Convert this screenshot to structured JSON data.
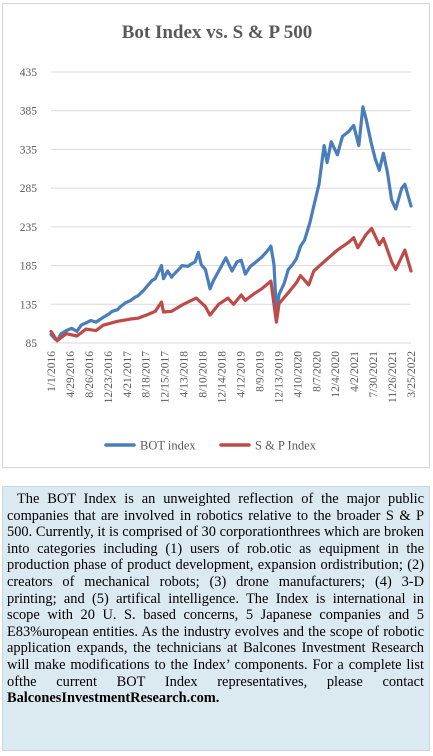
{
  "chart_data": {
    "type": "line",
    "title": "Bot Index vs. S & P 500",
    "ylim": [
      85,
      435
    ],
    "yticks": [
      85,
      135,
      185,
      235,
      285,
      335,
      385,
      435
    ],
    "xticks": [
      "1/1/2016",
      "4/29/2016",
      "8/26/2016",
      "12/23/2016",
      "4/21/2017",
      "8/18/2017",
      "12/15/2017",
      "4/13/2018",
      "8/10/2018",
      "12/14/2018",
      "4/12/2019",
      "8/9/2019",
      "12/13/2019",
      "4/10/2020",
      "8/7/2020",
      "12/4/2020",
      "4/2/2021",
      "7/30/2021",
      "11/26/2021",
      "3/25/2022"
    ],
    "xrange": [
      "2016-01-01",
      "2022-09-30"
    ],
    "grid": true,
    "legend": "bottom",
    "series": [
      {
        "name": "BOT index",
        "color": "#4a7ebb",
        "points": [
          [
            "2016-01-01",
            96
          ],
          [
            "2016-01-25",
            91
          ],
          [
            "2016-02-12",
            88
          ],
          [
            "2016-03-10",
            97
          ],
          [
            "2016-04-15",
            101
          ],
          [
            "2016-05-20",
            104
          ],
          [
            "2016-06-27",
            100
          ],
          [
            "2016-07-25",
            108
          ],
          [
            "2016-08-26",
            111
          ],
          [
            "2016-09-30",
            114
          ],
          [
            "2016-11-04",
            112
          ],
          [
            "2016-12-23",
            118
          ],
          [
            "2017-01-27",
            122
          ],
          [
            "2017-02-24",
            126
          ],
          [
            "2017-03-31",
            128
          ],
          [
            "2017-04-21",
            132
          ],
          [
            "2017-05-26",
            137
          ],
          [
            "2017-06-30",
            140
          ],
          [
            "2017-07-28",
            144
          ],
          [
            "2017-08-18",
            146
          ],
          [
            "2017-09-22",
            152
          ],
          [
            "2017-10-27",
            160
          ],
          [
            "2017-11-24",
            166
          ],
          [
            "2017-12-15",
            168
          ],
          [
            "2018-01-26",
            185
          ],
          [
            "2018-02-09",
            168
          ],
          [
            "2018-03-09",
            178
          ],
          [
            "2018-04-06",
            170
          ],
          [
            "2018-04-13",
            172
          ],
          [
            "2018-05-25",
            180
          ],
          [
            "2018-06-15",
            185
          ],
          [
            "2018-07-27",
            184
          ],
          [
            "2018-08-10",
            186
          ],
          [
            "2018-09-14",
            190
          ],
          [
            "2018-10-05",
            202
          ],
          [
            "2018-10-26",
            186
          ],
          [
            "2018-11-23",
            180
          ],
          [
            "2018-12-24",
            155
          ],
          [
            "2019-01-18",
            166
          ],
          [
            "2019-02-22",
            178
          ],
          [
            "2019-04-12",
            195
          ],
          [
            "2019-05-24",
            178
          ],
          [
            "2019-06-28",
            190
          ],
          [
            "2019-07-26",
            192
          ],
          [
            "2019-08-23",
            174
          ],
          [
            "2019-09-27",
            184
          ],
          [
            "2019-10-25",
            188
          ],
          [
            "2019-12-13",
            196
          ],
          [
            "2020-01-17",
            203
          ],
          [
            "2020-02-14",
            210
          ],
          [
            "2020-03-06",
            186
          ],
          [
            "2020-03-23",
            125
          ],
          [
            "2020-04-10",
            148
          ],
          [
            "2020-05-15",
            162
          ],
          [
            "2020-06-12",
            180
          ],
          [
            "2020-07-10",
            186
          ],
          [
            "2020-08-07",
            194
          ],
          [
            "2020-09-04",
            210
          ],
          [
            "2020-10-02",
            218
          ],
          [
            "2020-11-06",
            240
          ],
          [
            "2020-12-04",
            262
          ],
          [
            "2021-01-08",
            290
          ],
          [
            "2021-02-12",
            340
          ],
          [
            "2021-03-05",
            318
          ],
          [
            "2021-04-02",
            345
          ],
          [
            "2021-05-14",
            328
          ],
          [
            "2021-06-18",
            352
          ],
          [
            "2021-07-30",
            358
          ],
          [
            "2021-09-03",
            366
          ],
          [
            "2021-10-08",
            340
          ],
          [
            "2021-11-05",
            390
          ],
          [
            "2021-11-26",
            375
          ],
          [
            "2021-12-31",
            344
          ],
          [
            "2022-01-28",
            323
          ],
          [
            "2022-02-25",
            308
          ],
          [
            "2022-03-25",
            330
          ],
          [
            "2022-04-22",
            305
          ],
          [
            "2022-05-20",
            270
          ],
          [
            "2022-06-17",
            258
          ],
          [
            "2022-07-29",
            285
          ],
          [
            "2022-08-19",
            290
          ],
          [
            "2022-09-30",
            262
          ]
        ]
      },
      {
        "name": "S & P Index",
        "color": "#be4b48",
        "points": [
          [
            "2016-01-01",
            100
          ],
          [
            "2016-02-12",
            88
          ],
          [
            "2016-04-15",
            97
          ],
          [
            "2016-06-27",
            94
          ],
          [
            "2016-08-26",
            103
          ],
          [
            "2016-11-04",
            101
          ],
          [
            "2016-12-23",
            108
          ],
          [
            "2017-03-31",
            113
          ],
          [
            "2017-06-30",
            116
          ],
          [
            "2017-08-18",
            117
          ],
          [
            "2017-10-27",
            122
          ],
          [
            "2017-12-15",
            126
          ],
          [
            "2018-01-26",
            138
          ],
          [
            "2018-02-09",
            125
          ],
          [
            "2018-04-06",
            126
          ],
          [
            "2018-06-15",
            134
          ],
          [
            "2018-09-21",
            143
          ],
          [
            "2018-11-23",
            132
          ],
          [
            "2018-12-24",
            121
          ],
          [
            "2019-02-22",
            135
          ],
          [
            "2019-04-26",
            143
          ],
          [
            "2019-06-03",
            135
          ],
          [
            "2019-07-26",
            147
          ],
          [
            "2019-08-23",
            140
          ],
          [
            "2019-10-25",
            149
          ],
          [
            "2019-12-13",
            155
          ],
          [
            "2020-02-14",
            165
          ],
          [
            "2020-03-23",
            112
          ],
          [
            "2020-04-10",
            136
          ],
          [
            "2020-06-12",
            150
          ],
          [
            "2020-08-07",
            163
          ],
          [
            "2020-09-04",
            172
          ],
          [
            "2020-10-30",
            160
          ],
          [
            "2020-12-04",
            178
          ],
          [
            "2021-02-12",
            190
          ],
          [
            "2021-04-02",
            198
          ],
          [
            "2021-05-14",
            205
          ],
          [
            "2021-07-30",
            215
          ],
          [
            "2021-09-03",
            221
          ],
          [
            "2021-10-01",
            208
          ],
          [
            "2021-11-26",
            225
          ],
          [
            "2022-01-03",
            233
          ],
          [
            "2022-02-25",
            212
          ],
          [
            "2022-03-25",
            220
          ],
          [
            "2022-05-20",
            190
          ],
          [
            "2022-06-17",
            180
          ],
          [
            "2022-08-19",
            205
          ],
          [
            "2022-09-30",
            178
          ]
        ]
      }
    ]
  },
  "paragraph": {
    "p1": "The BOT Index is an unweighted reflection of the major public companies that are involved in robotics relative to the broader S & P 500. Currently, it is comprised of 30 corporationthrees which are broken into categories including (1) users of rob.otic as equipment in the production phase of product development, expansion ordistribution; (2) creators of mechanical robots; (3) drone manufacturers; (4) 3-D printing; and (5) artifical intelligence. The Index is international in scope with 20 U. S. based concerns, 5 Japanese companies and 5 E83%uropean entities. As the industry evolves and the scope of robotic application expands, the technicians at Balcones Investment Research will make modifications to the Index’ components. For a  complete list ofthe current BOT Index representatives, please contact",
    "link": "BalconesInvestmentResearch.com."
  }
}
